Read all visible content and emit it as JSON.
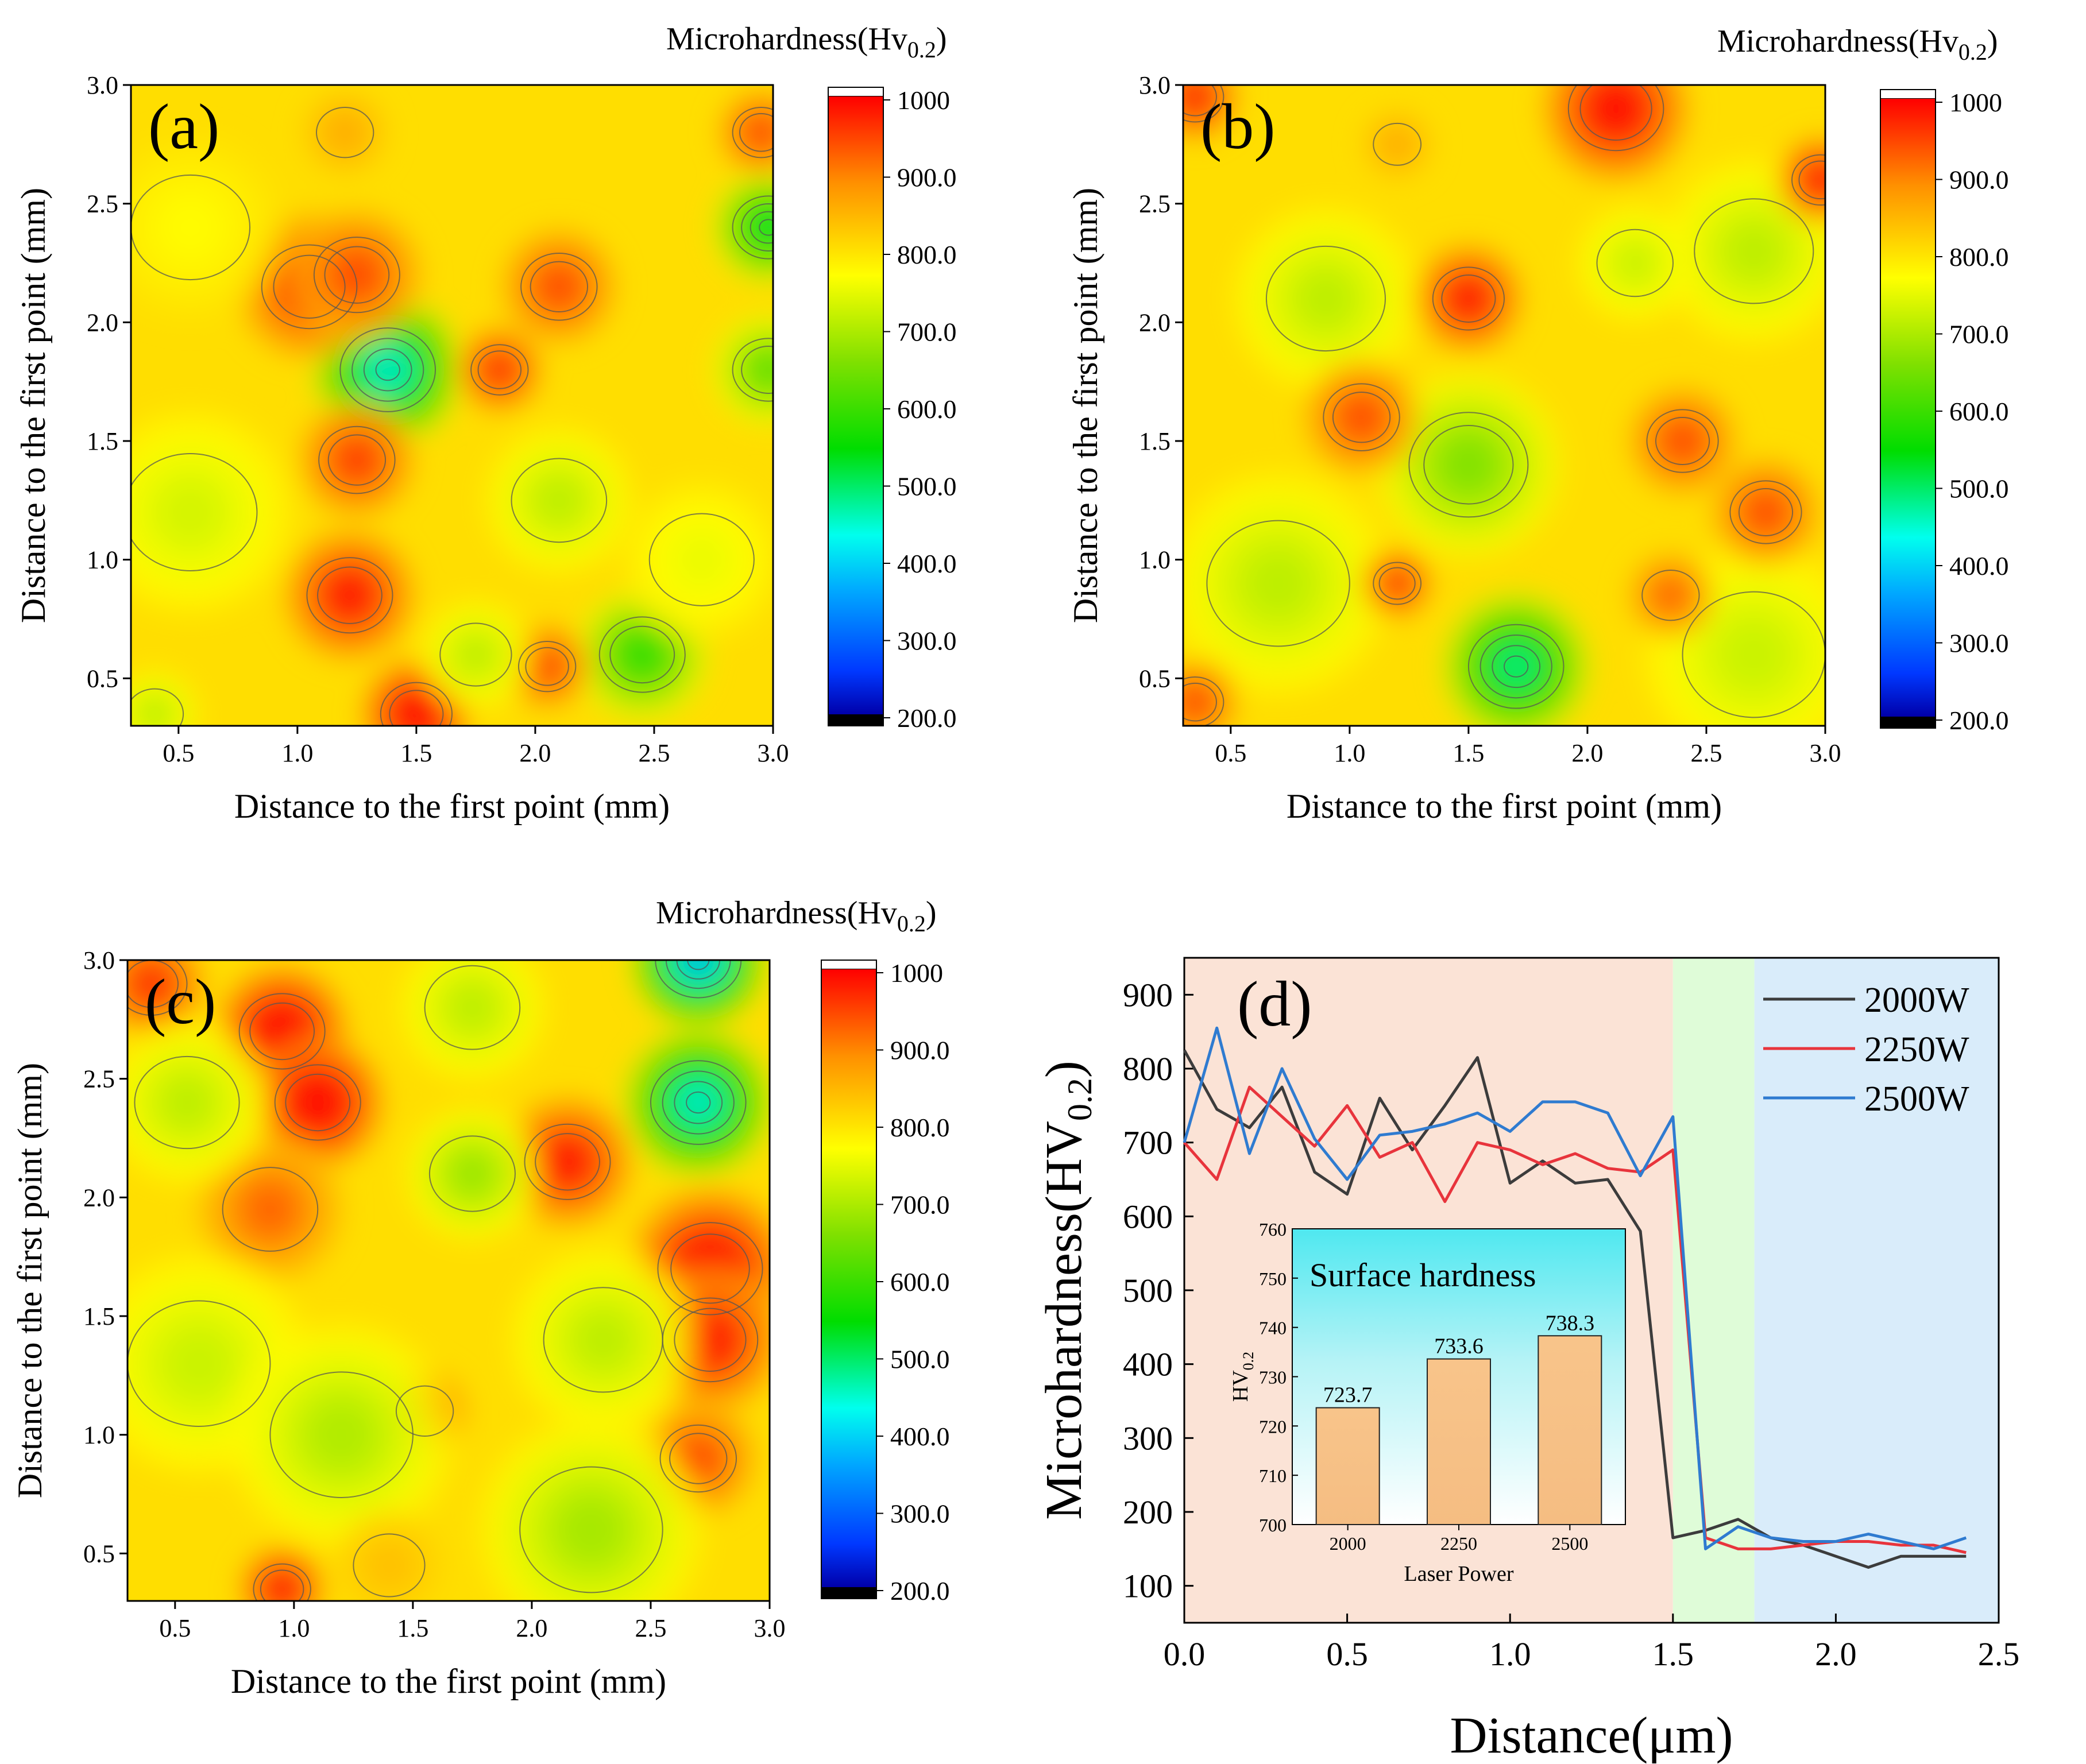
{
  "chart_data": [
    {
      "type": "heatmap",
      "panel_label": "(a)",
      "colorbar_title": "Microhardness(Hv",
      "colorbar_sub": "0.2",
      "colorbar_close": ")",
      "xlabel": "Distance to the first point (mm)",
      "ylabel": "Distance to the first point (mm)",
      "xlim": [
        0.3,
        3.0
      ],
      "ylim": [
        0.3,
        3.0
      ],
      "xticks": [
        "0.5",
        "1.0",
        "1.5",
        "2.0",
        "2.5",
        "3.0"
      ],
      "yticks": [
        "0.5",
        "1.0",
        "1.5",
        "2.0",
        "2.5",
        "3.0"
      ],
      "colorbar_ticks": [
        "200.0",
        "300.0",
        "400.0",
        "500.0",
        "600.0",
        "700.0",
        "800.0",
        "900.0",
        "1000"
      ],
      "features": [
        {
          "x": 1.38,
          "y": 1.8,
          "v": 380,
          "r": 0.2
        },
        {
          "x": 2.98,
          "y": 2.4,
          "v": 470,
          "r": 0.15
        },
        {
          "x": 2.45,
          "y": 0.6,
          "v": 520,
          "r": 0.18
        },
        {
          "x": 2.98,
          "y": 1.8,
          "v": 560,
          "r": 0.15
        },
        {
          "x": 1.05,
          "y": 2.15,
          "v": 880,
          "r": 0.2
        },
        {
          "x": 1.25,
          "y": 2.2,
          "v": 860,
          "r": 0.18
        },
        {
          "x": 2.1,
          "y": 2.15,
          "v": 860,
          "r": 0.16
        },
        {
          "x": 1.85,
          "y": 1.8,
          "v": 880,
          "r": 0.12
        },
        {
          "x": 1.25,
          "y": 1.42,
          "v": 870,
          "r": 0.16
        },
        {
          "x": 1.22,
          "y": 0.85,
          "v": 900,
          "r": 0.18
        },
        {
          "x": 1.5,
          "y": 0.35,
          "v": 930,
          "r": 0.15
        },
        {
          "x": 2.05,
          "y": 0.55,
          "v": 860,
          "r": 0.12
        },
        {
          "x": 2.95,
          "y": 2.8,
          "v": 860,
          "r": 0.12
        },
        {
          "x": 2.1,
          "y": 1.25,
          "v": 640,
          "r": 0.2
        },
        {
          "x": 0.55,
          "y": 1.2,
          "v": 660,
          "r": 0.28
        },
        {
          "x": 1.75,
          "y": 0.6,
          "v": 640,
          "r": 0.15
        },
        {
          "x": 0.55,
          "y": 2.4,
          "v": 700,
          "r": 0.25
        },
        {
          "x": 2.7,
          "y": 1.0,
          "v": 680,
          "r": 0.22
        },
        {
          "x": 1.2,
          "y": 2.8,
          "v": 780,
          "r": 0.12
        },
        {
          "x": 0.4,
          "y": 0.35,
          "v": 640,
          "r": 0.12
        }
      ]
    },
    {
      "type": "heatmap",
      "panel_label": "(b)",
      "colorbar_title": "Microhardness(Hv",
      "colorbar_sub": "0.2",
      "colorbar_close": ")",
      "xlabel": "Distance to the first point (mm)",
      "ylabel": "Distance to the first point (mm)",
      "xlim": [
        0.3,
        3.0
      ],
      "ylim": [
        0.3,
        3.0
      ],
      "xticks": [
        "0.5",
        "1.0",
        "1.5",
        "2.0",
        "2.5",
        "3.0"
      ],
      "yticks": [
        "0.5",
        "1.0",
        "1.5",
        "2.0",
        "2.5",
        "3.0"
      ],
      "colorbar_ticks": [
        "200.0",
        "300.0",
        "400.0",
        "500.0",
        "600.0",
        "700.0",
        "800.0",
        "900.0",
        "1000"
      ],
      "features": [
        {
          "x": 1.7,
          "y": 0.55,
          "v": 430,
          "r": 0.2
        },
        {
          "x": 1.5,
          "y": 1.4,
          "v": 590,
          "r": 0.25
        },
        {
          "x": 0.9,
          "y": 2.1,
          "v": 640,
          "r": 0.25
        },
        {
          "x": 2.7,
          "y": 2.3,
          "v": 640,
          "r": 0.25
        },
        {
          "x": 2.2,
          "y": 2.25,
          "v": 650,
          "r": 0.16
        },
        {
          "x": 0.7,
          "y": 0.9,
          "v": 640,
          "r": 0.3
        },
        {
          "x": 2.7,
          "y": 0.6,
          "v": 650,
          "r": 0.3
        },
        {
          "x": 2.12,
          "y": 2.9,
          "v": 920,
          "r": 0.2
        },
        {
          "x": 1.5,
          "y": 2.1,
          "v": 900,
          "r": 0.15
        },
        {
          "x": 1.05,
          "y": 1.6,
          "v": 860,
          "r": 0.16
        },
        {
          "x": 2.4,
          "y": 1.5,
          "v": 860,
          "r": 0.15
        },
        {
          "x": 2.75,
          "y": 1.2,
          "v": 860,
          "r": 0.15
        },
        {
          "x": 1.2,
          "y": 0.9,
          "v": 870,
          "r": 0.1
        },
        {
          "x": 2.35,
          "y": 0.85,
          "v": 840,
          "r": 0.12
        },
        {
          "x": 2.98,
          "y": 2.6,
          "v": 900,
          "r": 0.12
        },
        {
          "x": 0.35,
          "y": 2.95,
          "v": 890,
          "r": 0.12
        },
        {
          "x": 0.35,
          "y": 0.4,
          "v": 860,
          "r": 0.12
        },
        {
          "x": 1.2,
          "y": 2.75,
          "v": 780,
          "r": 0.1
        }
      ]
    },
    {
      "type": "heatmap",
      "panel_label": "(c)",
      "colorbar_title": "Microhardness(Hv",
      "colorbar_sub": "0.2",
      "colorbar_close": ")",
      "xlabel": "Distance to the first point (mm)",
      "ylabel": "Distance to the first point (mm)",
      "xlim": [
        0.3,
        3.0
      ],
      "ylim": [
        0.3,
        3.0
      ],
      "xticks": [
        "0.5",
        "1.0",
        "1.5",
        "2.0",
        "2.5",
        "3.0"
      ],
      "yticks": [
        "0.5",
        "1.0",
        "1.5",
        "2.0",
        "2.5",
        "3.0"
      ],
      "colorbar_ticks": [
        "200.0",
        "300.0",
        "400.0",
        "500.0",
        "600.0",
        "700.0",
        "800.0",
        "900.0",
        "1000"
      ],
      "features": [
        {
          "x": 2.7,
          "y": 2.4,
          "v": 380,
          "r": 0.2
        },
        {
          "x": 2.7,
          "y": 3.0,
          "v": 330,
          "r": 0.18
        },
        {
          "x": 0.95,
          "y": 2.7,
          "v": 940,
          "r": 0.18
        },
        {
          "x": 1.1,
          "y": 2.4,
          "v": 940,
          "r": 0.18
        },
        {
          "x": 0.9,
          "y": 1.95,
          "v": 840,
          "r": 0.2
        },
        {
          "x": 2.15,
          "y": 2.15,
          "v": 900,
          "r": 0.18
        },
        {
          "x": 2.75,
          "y": 1.7,
          "v": 930,
          "r": 0.22
        },
        {
          "x": 2.75,
          "y": 1.4,
          "v": 900,
          "r": 0.2
        },
        {
          "x": 1.55,
          "y": 1.1,
          "v": 850,
          "r": 0.12
        },
        {
          "x": 2.7,
          "y": 0.9,
          "v": 860,
          "r": 0.16
        },
        {
          "x": 0.95,
          "y": 0.35,
          "v": 900,
          "r": 0.12
        },
        {
          "x": 0.4,
          "y": 2.9,
          "v": 880,
          "r": 0.15
        },
        {
          "x": 0.55,
          "y": 2.4,
          "v": 640,
          "r": 0.22
        },
        {
          "x": 1.75,
          "y": 2.1,
          "v": 610,
          "r": 0.18
        },
        {
          "x": 1.75,
          "y": 2.8,
          "v": 640,
          "r": 0.2
        },
        {
          "x": 0.6,
          "y": 1.3,
          "v": 650,
          "r": 0.3
        },
        {
          "x": 1.2,
          "y": 1.0,
          "v": 630,
          "r": 0.3
        },
        {
          "x": 2.25,
          "y": 0.6,
          "v": 620,
          "r": 0.3
        },
        {
          "x": 2.3,
          "y": 1.4,
          "v": 640,
          "r": 0.25
        },
        {
          "x": 1.4,
          "y": 0.45,
          "v": 760,
          "r": 0.15
        }
      ]
    },
    {
      "type": "line",
      "panel_label": "(d)",
      "title": "",
      "xlabel": "Distance(μm)",
      "ylabel": "Microhardness(HV",
      "ylabel_sub": "0.2",
      "ylabel_close": ")",
      "xlim": [
        0.0,
        2.5
      ],
      "ylim": [
        50,
        950
      ],
      "xticks": [
        "0.0",
        "0.5",
        "1.0",
        "1.5",
        "2.0",
        "2.5"
      ],
      "yticks": [
        "100",
        "200",
        "300",
        "400",
        "500",
        "600",
        "700",
        "800",
        "900"
      ],
      "regions": [
        {
          "from": 0.0,
          "to": 1.5,
          "color": "#fbe3d6"
        },
        {
          "from": 1.5,
          "to": 1.75,
          "color": "#dffcd8"
        },
        {
          "from": 1.75,
          "to": 2.5,
          "color": "#d9ecfa"
        }
      ],
      "x": [
        0.0,
        0.1,
        0.2,
        0.3,
        0.4,
        0.5,
        0.6,
        0.7,
        0.8,
        0.9,
        1.0,
        1.1,
        1.2,
        1.3,
        1.4,
        1.5,
        1.6,
        1.7,
        1.8,
        1.9,
        2.0,
        2.1,
        2.2,
        2.3,
        2.4
      ],
      "series": [
        {
          "name": "2000W",
          "color": "#3c3c3c",
          "values": [
            825,
            745,
            720,
            775,
            660,
            630,
            760,
            690,
            750,
            815,
            645,
            675,
            645,
            650,
            580,
            165,
            175,
            190,
            165,
            155,
            140,
            125,
            140,
            140,
            140
          ]
        },
        {
          "name": "2250W",
          "color": "#e8343c",
          "values": [
            700,
            650,
            775,
            735,
            695,
            750,
            680,
            700,
            620,
            700,
            690,
            670,
            685,
            665,
            660,
            690,
            165,
            150,
            150,
            155,
            160,
            160,
            155,
            155,
            145
          ]
        },
        {
          "name": "2500W",
          "color": "#2f7bd0",
          "values": [
            700,
            855,
            685,
            800,
            705,
            650,
            710,
            715,
            725,
            740,
            715,
            755,
            755,
            740,
            655,
            735,
            150,
            180,
            165,
            160,
            160,
            170,
            160,
            150,
            165
          ]
        }
      ],
      "inset": {
        "type": "bar",
        "title": "Surface hardness",
        "xlabel": "Laser Power",
        "ylabel": "HV",
        "ylabel_sub": "0.2",
        "categories": [
          "2000",
          "2250",
          "2500"
        ],
        "values": [
          723.7,
          733.6,
          738.3
        ],
        "labels": [
          "723.7",
          "733.6",
          "738.3"
        ],
        "ylim": [
          700,
          760
        ],
        "yticks": [
          "700",
          "710",
          "720",
          "730",
          "740",
          "750",
          "760"
        ]
      }
    }
  ]
}
